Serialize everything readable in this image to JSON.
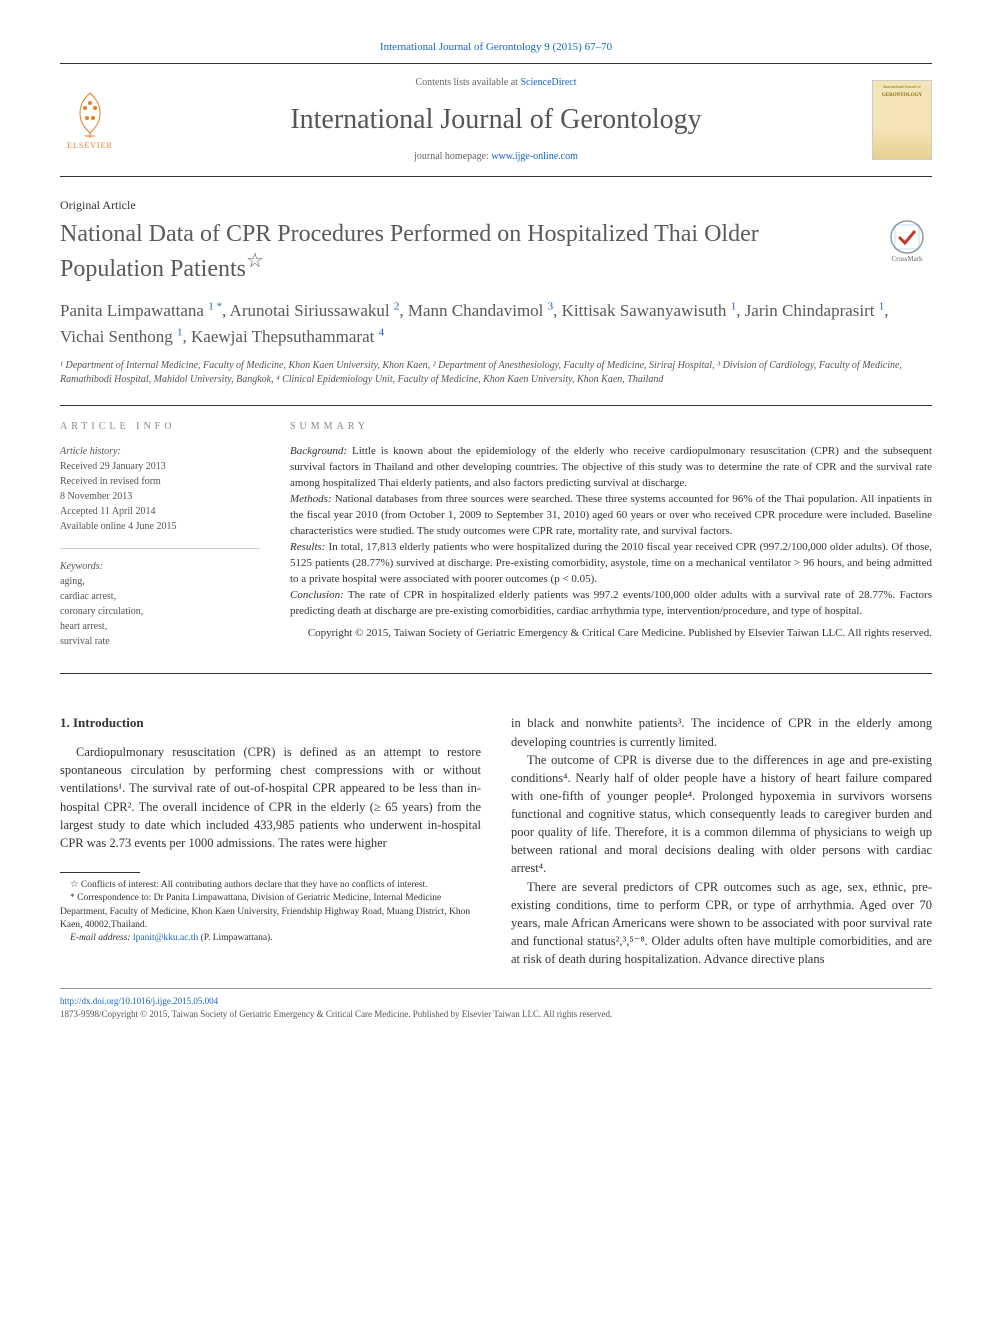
{
  "citation": "International Journal of Gerontology 9 (2015) 67–70",
  "header": {
    "contents_prefix": "Contents lists available at ",
    "contents_link": "ScienceDirect",
    "journal_name": "International Journal of Gerontology",
    "homepage_prefix": "journal homepage: ",
    "homepage_link": "www.ijge-online.com",
    "elsevier_label": "ELSEVIER",
    "cover_label": "GERONTOLOGY"
  },
  "article_type": "Original Article",
  "title": "National Data of CPR Procedures Performed on Hospitalized Thai Older Population Patients",
  "title_marker": "☆",
  "crossmark_label": "CrossMark",
  "authors_html": "Panita Limpawattana <sup><a>1</a> *</sup>, Arunotai Siriussawakul <sup><a>2</a></sup>, Mann Chandavimol <sup><a>3</a></sup>, Kittisak Sawanyawisuth <sup><a>1</a></sup>, Jarin Chindaprasirt <sup><a>1</a></sup>, Vichai Senthong <sup><a>1</a></sup>, Kaewjai Thepsuthammarat <sup><a>4</a></sup>",
  "affiliations": "¹ Department of Internal Medicine, Faculty of Medicine, Khon Kaen University, Khon Kaen, ² Department of Anesthesiology, Faculty of Medicine, Siriraj Hospital, ³ Division of Cardiology, Faculty of Medicine, Ramathibodi Hospital, Mahidol University, Bangkok, ⁴ Clinical Epidemiology Unit, Faculty of Medicine, Khon Kaen University, Khon Kaen, Thailand",
  "info": {
    "label": "ARTICLE INFO",
    "history_label": "Article history:",
    "history": "Received 29 January 2013\nReceived in revised form\n8 November 2013\nAccepted 11 April 2014\nAvailable online 4 June 2015",
    "keywords_label": "Keywords:",
    "keywords": "aging,\ncardiac arrest,\ncoronary circulation,\nheart arrest,\nsurvival rate"
  },
  "summary": {
    "label": "SUMMARY",
    "background_label": "Background:",
    "background": " Little is known about the epidemiology of the elderly who receive cardiopulmonary resuscitation (CPR) and the subsequent survival factors in Thailand and other developing countries. The objective of this study was to determine the rate of CPR and the survival rate among hospitalized Thai elderly patients, and also factors predicting survival at discharge.",
    "methods_label": "Methods:",
    "methods": " National databases from three sources were searched. These three systems accounted for 96% of the Thai population. All inpatients in the fiscal year 2010 (from October 1, 2009 to September 31, 2010) aged 60 years or over who received CPR procedure were included. Baseline characteristics were studied. The study outcomes were CPR rate, mortality rate, and survival factors.",
    "results_label": "Results:",
    "results": " In total, 17,813 elderly patients who were hospitalized during the 2010 fiscal year received CPR (997.2/100,000 older adults). Of those, 5125 patients (28.77%) survived at discharge. Pre-existing comorbidity, asystole, time on a mechanical ventilator > 96 hours, and being admitted to a private hospital were associated with poorer outcomes (p < 0.05).",
    "conclusion_label": "Conclusion:",
    "conclusion": " The rate of CPR in hospitalized elderly patients was 997.2 events/100,000 older adults with a survival rate of 28.77%. Factors predicting death at discharge are pre-existing comorbidities, cardiac arrhythmia type, intervention/procedure, and type of hospital.",
    "copyright": "Copyright © 2015, Taiwan Society of Geriatric Emergency & Critical Care Medicine. Published by Elsevier Taiwan LLC. All rights reserved."
  },
  "body": {
    "intro_heading": "1. Introduction",
    "p1": "Cardiopulmonary resuscitation (CPR) is defined as an attempt to restore spontaneous circulation by performing chest compressions with or without ventilations¹. The survival rate of out-of-hospital CPR appeared to be less than in-hospital CPR². The overall incidence of CPR in the elderly (≥ 65 years) from the largest study to date which included 433,985 patients who underwent in-hospital CPR was 2.73 events per 1000 admissions. The rates were higher",
    "p2": "in black and nonwhite patients³. The incidence of CPR in the elderly among developing countries is currently limited.",
    "p3": "The outcome of CPR is diverse due to the differences in age and pre-existing conditions⁴. Nearly half of older people have a history of heart failure compared with one-fifth of younger people⁴. Prolonged hypoxemia in survivors worsens functional and cognitive status, which consequently leads to caregiver burden and poor quality of life. Therefore, it is a common dilemma of physicians to weigh up between rational and moral decisions dealing with older persons with cardiac arrest⁴.",
    "p4": "There are several predictors of CPR outcomes such as age, sex, ethnic, pre-existing conditions, time to perform CPR, or type of arrhythmia. Aged over 70 years, male African Americans were shown to be associated with poor survival rate and functional status²,³,⁵⁻⁸. Older adults often have multiple comorbidities, and are at risk of death during hospitalization. Advance directive plans"
  },
  "footnotes": {
    "conflict": "☆ Conflicts of interest: All contributing authors declare that they have no conflicts of interest.",
    "correspondence": "* Correspondence to: Dr Panita Limpawattana, Division of Geriatric Medicine, Internal Medicine Department, Faculty of Medicine, Khon Kaen University, Friendship Highway Road, Muang District, Khon Kaen, 40002,Thailand.",
    "email_label": "E-mail address:",
    "email": " lpanit@kku.ac.th ",
    "email_suffix": "(P. Limpawattana)."
  },
  "bottom": {
    "doi": "http://dx.doi.org/10.1016/j.ijge.2015.05.004",
    "issn": "1873-9598/Copyright © 2015, Taiwan Society of Geriatric Emergency & Critical Care Medicine. Published by Elsevier Taiwan LLC. All rights reserved."
  },
  "colors": {
    "link": "#1565c0",
    "text": "#333333",
    "heading": "#5a5a5a",
    "elsevier": "#e67e22"
  }
}
